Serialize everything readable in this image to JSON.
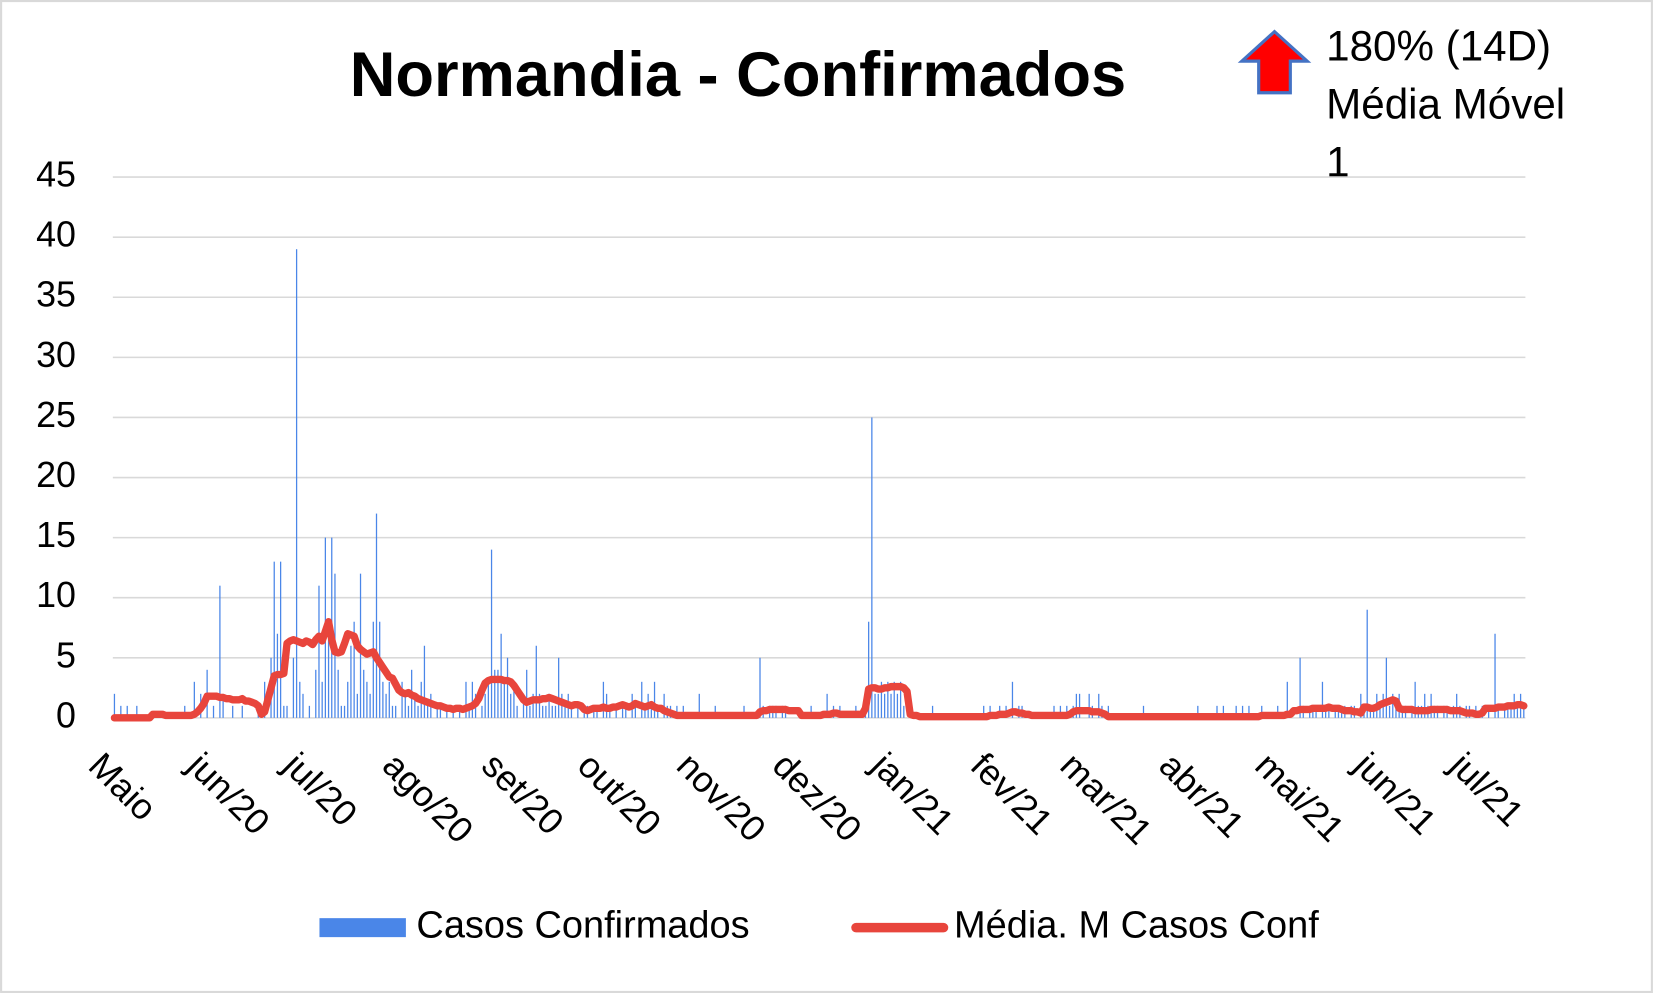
{
  "chart_data": {
    "type": "combo",
    "title": "Normandia - Confirmados",
    "annotation": [
      "180% (14D)",
      "Média Móvel",
      "1"
    ],
    "categories": [
      "Maio",
      null,
      null,
      null,
      null,
      null,
      null,
      null,
      null,
      null,
      null,
      null,
      null,
      null,
      null,
      null,
      null,
      null,
      null,
      null,
      null,
      null,
      null,
      null,
      null,
      null,
      null,
      null,
      null,
      null,
      null,
      "jun/20",
      null,
      null,
      null,
      null,
      null,
      null,
      null,
      null,
      null,
      null,
      null,
      null,
      null,
      null,
      null,
      null,
      null,
      null,
      null,
      null,
      null,
      null,
      null,
      null,
      null,
      null,
      null,
      null,
      null,
      "jul/20",
      null,
      null,
      null,
      null,
      null,
      null,
      null,
      null,
      null,
      null,
      null,
      null,
      null,
      null,
      null,
      null,
      null,
      null,
      null,
      null,
      null,
      null,
      null,
      null,
      null,
      null,
      null,
      null,
      null,
      null,
      "ago/20",
      null,
      null,
      null,
      null,
      null,
      null,
      null,
      null,
      null,
      null,
      null,
      null,
      null,
      null,
      null,
      null,
      null,
      null,
      null,
      null,
      null,
      null,
      null,
      null,
      null,
      null,
      null,
      null,
      null,
      null,
      "set/20",
      null,
      null,
      null,
      null,
      null,
      null,
      null,
      null,
      null,
      null,
      null,
      null,
      null,
      null,
      null,
      null,
      null,
      null,
      null,
      null,
      null,
      null,
      null,
      null,
      null,
      null,
      null,
      null,
      null,
      "out/20",
      null,
      null,
      null,
      null,
      null,
      null,
      null,
      null,
      null,
      null,
      null,
      null,
      null,
      null,
      null,
      null,
      null,
      null,
      null,
      null,
      null,
      null,
      null,
      null,
      null,
      null,
      null,
      null,
      null,
      null,
      "nov/20",
      null,
      null,
      null,
      null,
      null,
      null,
      null,
      null,
      null,
      null,
      null,
      null,
      null,
      null,
      null,
      null,
      null,
      null,
      null,
      null,
      null,
      null,
      null,
      null,
      null,
      null,
      null,
      null,
      null,
      "dez/20",
      null,
      null,
      null,
      null,
      null,
      null,
      null,
      null,
      null,
      null,
      null,
      null,
      null,
      null,
      null,
      null,
      null,
      null,
      null,
      null,
      null,
      null,
      null,
      null,
      null,
      null,
      null,
      null,
      null,
      null,
      "jan/21",
      null,
      null,
      null,
      null,
      null,
      null,
      null,
      null,
      null,
      null,
      null,
      null,
      null,
      null,
      null,
      null,
      null,
      null,
      null,
      null,
      null,
      null,
      null,
      null,
      null,
      null,
      null,
      null,
      null,
      null,
      "fev/21",
      null,
      null,
      null,
      null,
      null,
      null,
      null,
      null,
      null,
      null,
      null,
      null,
      null,
      null,
      null,
      null,
      null,
      null,
      null,
      null,
      null,
      null,
      null,
      null,
      null,
      null,
      null,
      "mar/21",
      null,
      null,
      null,
      null,
      null,
      null,
      null,
      null,
      null,
      null,
      null,
      null,
      null,
      null,
      null,
      null,
      null,
      null,
      null,
      null,
      null,
      null,
      null,
      null,
      null,
      null,
      null,
      null,
      null,
      null,
      "abr/21",
      null,
      null,
      null,
      null,
      null,
      null,
      null,
      null,
      null,
      null,
      null,
      null,
      null,
      null,
      null,
      null,
      null,
      null,
      null,
      null,
      null,
      null,
      null,
      null,
      null,
      null,
      null,
      null,
      null,
      "mai/21",
      null,
      null,
      null,
      null,
      null,
      null,
      null,
      null,
      null,
      null,
      null,
      null,
      null,
      null,
      null,
      null,
      null,
      null,
      null,
      null,
      null,
      null,
      null,
      null,
      null,
      null,
      null,
      null,
      null,
      null,
      "jun/21",
      null,
      null,
      null,
      null,
      null,
      null,
      null,
      null,
      null,
      null,
      null,
      null,
      null,
      null,
      null,
      null,
      null,
      null,
      null,
      null,
      null,
      null,
      null,
      null,
      null,
      null,
      null,
      null,
      null,
      "jul/21",
      null,
      null,
      null,
      null,
      null,
      null,
      null,
      null,
      null,
      null,
      null,
      null,
      null,
      null,
      null
    ],
    "series": [
      {
        "name": "Casos Confirmados",
        "type": "bar",
        "color": "#4a86e8",
        "values": [
          2,
          0,
          1,
          0,
          1,
          0,
          0,
          1,
          0,
          0,
          0,
          0,
          0,
          0,
          0,
          0,
          0,
          0,
          0,
          0,
          0,
          0,
          1,
          0,
          0,
          3,
          0,
          2,
          0,
          4,
          0,
          1,
          0,
          11,
          2,
          0,
          0,
          1,
          0,
          0,
          1,
          0,
          0,
          0,
          0,
          1,
          0,
          3,
          0,
          5,
          13,
          7,
          13,
          1,
          1,
          0,
          5,
          39,
          3,
          2,
          0,
          1,
          0,
          4,
          11,
          3,
          15,
          8,
          15,
          12,
          4,
          1,
          1,
          3,
          6,
          8,
          2,
          12,
          4,
          3,
          2,
          8,
          17,
          8,
          3,
          2,
          3,
          1,
          1,
          0,
          3,
          2,
          1,
          4,
          2,
          1,
          3,
          6,
          1,
          2,
          0,
          1,
          1,
          0,
          1,
          0,
          1,
          0,
          1,
          0,
          3,
          1,
          3,
          2,
          0,
          1,
          2,
          3,
          14,
          4,
          4,
          7,
          3,
          5,
          2,
          3,
          1,
          0,
          2,
          4,
          1,
          2,
          6,
          2,
          1,
          1,
          2,
          1,
          1,
          5,
          2,
          1,
          2,
          1,
          0,
          1,
          0,
          1,
          1,
          0,
          1,
          1,
          0,
          3,
          2,
          1,
          0,
          1,
          0,
          1,
          1,
          0,
          2,
          1,
          0,
          3,
          1,
          2,
          1,
          3,
          1,
          0,
          2,
          1,
          1,
          0,
          1,
          0,
          1,
          0,
          0,
          0,
          0,
          2,
          0,
          0,
          0,
          0,
          1,
          0,
          0,
          0,
          0,
          0,
          0,
          0,
          0,
          1,
          0,
          0,
          0,
          0,
          5,
          1,
          0,
          1,
          1,
          1,
          0,
          1,
          1,
          0,
          0,
          0,
          0,
          0,
          0,
          0,
          1,
          0,
          0,
          0,
          0,
          2,
          0,
          1,
          0,
          1,
          0,
          0,
          0,
          0,
          1,
          0,
          0,
          1,
          8,
          25,
          2,
          2,
          3,
          2,
          3,
          2,
          3,
          2,
          3,
          1,
          0,
          0,
          0,
          0,
          0,
          0,
          0,
          0,
          1,
          0,
          0,
          0,
          0,
          0,
          0,
          0,
          0,
          0,
          0,
          0,
          0,
          0,
          0,
          0,
          1,
          0,
          1,
          0,
          0,
          1,
          0,
          1,
          0,
          3,
          0,
          1,
          1,
          0,
          0,
          0,
          0,
          0,
          0,
          0,
          0,
          0,
          1,
          0,
          1,
          0,
          1,
          0,
          1,
          2,
          2,
          0,
          0,
          2,
          1,
          0,
          2,
          1,
          0,
          1,
          0,
          0,
          0,
          0,
          0,
          0,
          0,
          0,
          0,
          0,
          1,
          0,
          0,
          0,
          0,
          0,
          0,
          0,
          0,
          0,
          0,
          0,
          0,
          0,
          0,
          0,
          0,
          1,
          0,
          0,
          0,
          0,
          0,
          1,
          0,
          1,
          0,
          0,
          0,
          1,
          0,
          1,
          0,
          1,
          0,
          0,
          0,
          1,
          0,
          0,
          0,
          0,
          1,
          0,
          0,
          3,
          0,
          0,
          0,
          5,
          1,
          0,
          1,
          1,
          1,
          0,
          3,
          1,
          1,
          0,
          1,
          1,
          1,
          1,
          0,
          1,
          1,
          0,
          2,
          1,
          9,
          1,
          1,
          2,
          1,
          2,
          5,
          1,
          2,
          1,
          2,
          1,
          1,
          0,
          1,
          3,
          1,
          1,
          2,
          1,
          2,
          1,
          1,
          0,
          1,
          1,
          0,
          1,
          2,
          1,
          0,
          1,
          1,
          0,
          1,
          0,
          1,
          0,
          1,
          0,
          7,
          1,
          0,
          1,
          1,
          1,
          2,
          1,
          2,
          1
        ]
      },
      {
        "name": "Média. M Casos Conf",
        "type": "line",
        "color": "#e8453c",
        "values": [
          0,
          0,
          0,
          0,
          0,
          0,
          0,
          0,
          0,
          0,
          0,
          0,
          0.3,
          0.3,
          0.3,
          0.3,
          0.2,
          0.2,
          0.2,
          0.2,
          0.2,
          0.2,
          0.2,
          0.2,
          0.2,
          0.3,
          0.5,
          0.8,
          1.2,
          1.8,
          1.8,
          1.8,
          1.8,
          1.7,
          1.7,
          1.6,
          1.6,
          1.5,
          1.5,
          1.5,
          1.6,
          1.4,
          1.4,
          1.3,
          1.2,
          1.0,
          0.3,
          0.5,
          1.5,
          2.5,
          3.5,
          3.6,
          3.6,
          3.7,
          6.2,
          6.4,
          6.5,
          6.4,
          6.3,
          6.2,
          6.4,
          6.3,
          6.1,
          6.5,
          6.8,
          6.4,
          7.2,
          8.0,
          6.5,
          5.5,
          5.4,
          5.5,
          6.2,
          7.0,
          6.9,
          6.8,
          6.0,
          5.7,
          5.5,
          5.3,
          5.4,
          5.5,
          5.0,
          4.6,
          4.2,
          3.8,
          3.4,
          3.3,
          2.8,
          2.3,
          2.1,
          2.0,
          2.1,
          1.9,
          1.8,
          1.6,
          1.5,
          1.4,
          1.3,
          1.2,
          1.1,
          1.0,
          1.0,
          0.9,
          0.8,
          0.8,
          0.7,
          0.8,
          0.8,
          0.7,
          0.8,
          0.9,
          1.0,
          1.2,
          1.6,
          2.3,
          2.9,
          3.1,
          3.2,
          3.2,
          3.2,
          3.2,
          3.1,
          3.1,
          3.0,
          2.7,
          2.3,
          1.9,
          1.5,
          1.3,
          1.4,
          1.5,
          1.5,
          1.5,
          1.6,
          1.6,
          1.7,
          1.6,
          1.5,
          1.4,
          1.3,
          1.2,
          1.1,
          1.0,
          1.1,
          1.1,
          1.0,
          0.7,
          0.6,
          0.7,
          0.8,
          0.8,
          0.8,
          0.9,
          0.8,
          0.8,
          0.9,
          0.9,
          1.0,
          1.1,
          1.0,
          0.9,
          1.0,
          1.2,
          1.1,
          1.0,
          0.9,
          1.0,
          1.1,
          0.9,
          0.8,
          0.8,
          0.6,
          0.5,
          0.4,
          0.3,
          0.2,
          0.2,
          0.2,
          0.2,
          0.2,
          0.2,
          0.2,
          0.2,
          0.2,
          0.2,
          0.2,
          0.2,
          0.2,
          0.2,
          0.2,
          0.2,
          0.2,
          0.2,
          0.2,
          0.2,
          0.2,
          0.2,
          0.2,
          0.2,
          0.2,
          0.2,
          0.5,
          0.6,
          0.6,
          0.7,
          0.7,
          0.7,
          0.7,
          0.7,
          0.7,
          0.6,
          0.6,
          0.6,
          0.6,
          0.2,
          0.2,
          0.2,
          0.2,
          0.2,
          0.2,
          0.2,
          0.3,
          0.3,
          0.3,
          0.4,
          0.4,
          0.3,
          0.3,
          0.3,
          0.3,
          0.3,
          0.3,
          0.3,
          0.3,
          0.8,
          2.4,
          2.5,
          2.5,
          2.4,
          2.4,
          2.5,
          2.5,
          2.6,
          2.6,
          2.6,
          2.6,
          2.5,
          2.2,
          0.3,
          0.2,
          0.2,
          0.1,
          0.1,
          0.1,
          0.1,
          0.1,
          0.1,
          0.1,
          0.1,
          0.1,
          0.1,
          0.1,
          0.1,
          0.1,
          0.1,
          0.1,
          0.1,
          0.1,
          0.1,
          0.1,
          0.1,
          0.1,
          0.1,
          0.2,
          0.2,
          0.2,
          0.3,
          0.3,
          0.3,
          0.4,
          0.5,
          0.5,
          0.4,
          0.4,
          0.3,
          0.3,
          0.2,
          0.2,
          0.2,
          0.2,
          0.2,
          0.2,
          0.2,
          0.2,
          0.2,
          0.2,
          0.2,
          0.2,
          0.3,
          0.5,
          0.6,
          0.6,
          0.6,
          0.6,
          0.6,
          0.5,
          0.5,
          0.5,
          0.4,
          0.3,
          0.1,
          0.1,
          0.1,
          0.1,
          0.1,
          0.1,
          0.1,
          0.1,
          0.1,
          0.1,
          0.1,
          0.1,
          0.1,
          0.1,
          0.1,
          0.1,
          0.1,
          0.1,
          0.1,
          0.1,
          0.1,
          0.1,
          0.1,
          0.1,
          0.1,
          0.1,
          0.1,
          0.1,
          0.1,
          0.1,
          0.1,
          0.1,
          0.1,
          0.1,
          0.1,
          0.1,
          0.1,
          0.1,
          0.1,
          0.1,
          0.1,
          0.1,
          0.1,
          0.1,
          0.1,
          0.1,
          0.1,
          0.1,
          0.2,
          0.2,
          0.2,
          0.2,
          0.2,
          0.2,
          0.2,
          0.2,
          0.3,
          0.3,
          0.6,
          0.6,
          0.7,
          0.7,
          0.7,
          0.7,
          0.8,
          0.8,
          0.8,
          0.8,
          0.8,
          0.9,
          0.8,
          0.8,
          0.8,
          0.7,
          0.6,
          0.6,
          0.6,
          0.5,
          0.5,
          0.4,
          0.9,
          0.9,
          0.8,
          0.8,
          0.9,
          1.1,
          1.2,
          1.3,
          1.4,
          1.5,
          1.4,
          0.8,
          0.7,
          0.7,
          0.7,
          0.7,
          0.6,
          0.6,
          0.6,
          0.6,
          0.6,
          0.7,
          0.7,
          0.7,
          0.7,
          0.7,
          0.7,
          0.6,
          0.6,
          0.6,
          0.6,
          0.5,
          0.4,
          0.4,
          0.4,
          0.3,
          0.3,
          0.4,
          0.8,
          0.8,
          0.8,
          0.8,
          0.9,
          0.9,
          0.9,
          1.0,
          1.0,
          1.0,
          1.1,
          1.1,
          1.0
        ]
      }
    ],
    "ylim": [
      0,
      45
    ],
    "yticks": [
      0,
      5,
      10,
      15,
      20,
      25,
      30,
      35,
      40,
      45
    ],
    "grid": true
  }
}
